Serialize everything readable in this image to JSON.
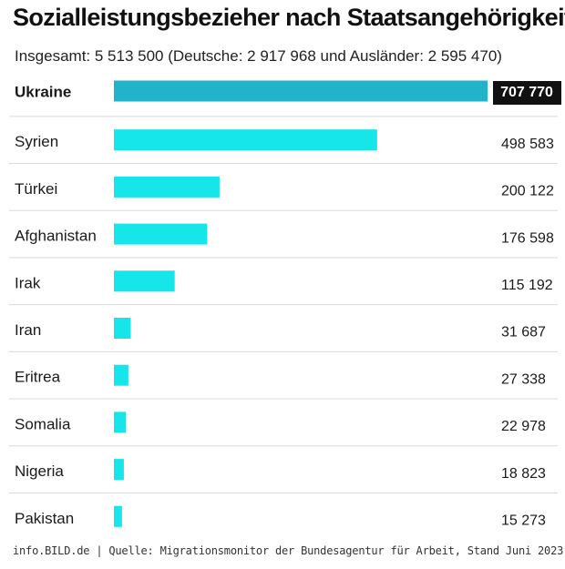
{
  "title": "Sozialleistungsbezieher nach Staatsangehörigkeit",
  "subtitle": "Insgesamt: 5 513 500 (Deutsche: 2 917 968 und Ausländer: 2 595 470)",
  "footer": "info.BILD.de | Quelle: Migrationsmonitor der Bundesagentur für Arbeit, Stand Juni 2023",
  "colors": {
    "bar_top": "#20b3c9",
    "bar": "#16e6e9",
    "label_box": "#111111",
    "separator": "#d7dadd"
  },
  "chart_data": {
    "type": "bar",
    "orientation": "horizontal",
    "categories": [
      "Ukraine",
      "Syrien",
      "Türkei",
      "Afghanistan",
      "Irak",
      "Iran",
      "Eritrea",
      "Somalia",
      "Nigeria",
      "Pakistan"
    ],
    "values": [
      707770,
      498583,
      200122,
      176598,
      115192,
      31687,
      27338,
      22978,
      18823,
      15273
    ],
    "value_labels": [
      "707 770",
      "498 583",
      "200 122",
      "176 598",
      "115 192",
      "31 687",
      "27 338",
      "22 978",
      "18 823",
      "15 273"
    ],
    "highlight_index": 0,
    "xlim": [
      0,
      707770
    ]
  }
}
